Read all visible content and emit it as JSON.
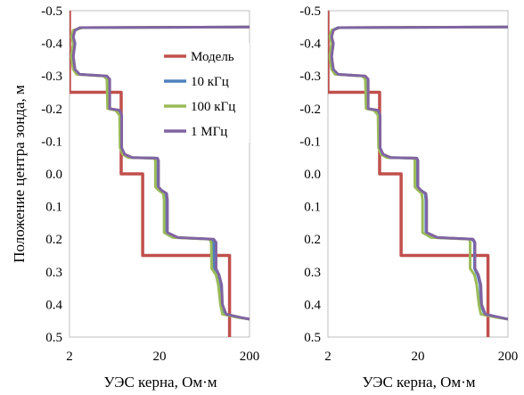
{
  "figure": {
    "ylabel": "Положение центра зонда, м",
    "xlabel": "УЭС керна,  Ом·м"
  },
  "chart_data": [
    {
      "type": "line",
      "xscale": "log",
      "xlim": [
        2,
        200
      ],
      "ylim": [
        -0.5,
        0.5
      ],
      "y_inverted": true,
      "x_ticks": [
        "2",
        "20",
        "200"
      ],
      "y_ticks": [
        "-0.5",
        "-0.4",
        "-0.3",
        "-0.2",
        "-0.1",
        "0.0",
        "0.1",
        "0.2",
        "0.3",
        "0.4",
        "0.5"
      ],
      "xlabel": "УЭС керна,  Ом·м",
      "ylabel": "Положение центра зонда, м",
      "grid": false,
      "legend": {
        "position": "top-right",
        "entries": [
          "Модель",
          "10 кГц",
          "100 кГц",
          "1 МГц"
        ]
      },
      "series": [
        {
          "name": "Модель",
          "color": "#c0504d",
          "points": [
            [
              2,
              -0.5
            ],
            [
              2,
              -0.25
            ],
            [
              7.5,
              -0.25
            ],
            [
              7.5,
              0.0
            ],
            [
              13,
              0.0
            ],
            [
              13,
              0.25
            ],
            [
              120,
              0.25
            ],
            [
              120,
              0.5
            ]
          ]
        },
        {
          "name": "10 кГц",
          "color": "#4f81bd",
          "points": [
            [
              200,
              -0.45
            ],
            [
              2.7,
              -0.448
            ],
            [
              2.3,
              -0.44
            ],
            [
              2.2,
              -0.42
            ],
            [
              2.3,
              -0.4
            ],
            [
              2.2,
              -0.36
            ],
            [
              2.3,
              -0.32
            ],
            [
              2.5,
              -0.305
            ],
            [
              5.0,
              -0.3
            ],
            [
              5.5,
              -0.29
            ],
            [
              5.5,
              -0.2
            ],
            [
              7.0,
              -0.195
            ],
            [
              7.5,
              -0.18
            ],
            [
              7.5,
              -0.08
            ],
            [
              8.0,
              -0.06
            ],
            [
              9.5,
              -0.05
            ],
            [
              18.0,
              -0.048
            ],
            [
              18.5,
              -0.04
            ],
            [
              18.5,
              0.04
            ],
            [
              20.0,
              0.05
            ],
            [
              23.0,
              0.06
            ],
            [
              23.5,
              0.08
            ],
            [
              23.5,
              0.18
            ],
            [
              30.0,
              0.195
            ],
            [
              75.0,
              0.2
            ],
            [
              80.0,
              0.21
            ],
            [
              80.0,
              0.29
            ],
            [
              90.0,
              0.31
            ],
            [
              95.0,
              0.34
            ],
            [
              98.0,
              0.4
            ],
            [
              105.0,
              0.43
            ],
            [
              150.0,
              0.44
            ],
            [
              200,
              0.445
            ]
          ]
        },
        {
          "name": "100 кГц",
          "color": "#9bbb59",
          "points": [
            [
              200,
              -0.45
            ],
            [
              2.8,
              -0.448
            ],
            [
              2.2,
              -0.44
            ],
            [
              2.1,
              -0.42
            ],
            [
              2.2,
              -0.4
            ],
            [
              2.1,
              -0.36
            ],
            [
              2.2,
              -0.32
            ],
            [
              2.4,
              -0.305
            ],
            [
              4.8,
              -0.3
            ],
            [
              5.2,
              -0.29
            ],
            [
              5.3,
              -0.2
            ],
            [
              6.5,
              -0.195
            ],
            [
              7.2,
              -0.18
            ],
            [
              7.3,
              -0.08
            ],
            [
              7.8,
              -0.06
            ],
            [
              9.0,
              -0.05
            ],
            [
              17.5,
              -0.048
            ],
            [
              18.0,
              -0.04
            ],
            [
              18.0,
              0.04
            ],
            [
              19.5,
              0.05
            ],
            [
              22.0,
              0.06
            ],
            [
              22.5,
              0.08
            ],
            [
              22.5,
              0.18
            ],
            [
              28.0,
              0.195
            ],
            [
              72.0,
              0.2
            ],
            [
              75.0,
              0.21
            ],
            [
              76.0,
              0.29
            ],
            [
              85.0,
              0.31
            ],
            [
              90.0,
              0.34
            ],
            [
              95.0,
              0.4
            ],
            [
              100.0,
              0.43
            ],
            [
              150.0,
              0.44
            ],
            [
              200,
              0.445
            ]
          ]
        },
        {
          "name": "1 МГц",
          "color": "#8064a2",
          "points": [
            [
              200,
              -0.45
            ],
            [
              2.6,
              -0.448
            ],
            [
              2.3,
              -0.44
            ],
            [
              2.2,
              -0.42
            ],
            [
              2.3,
              -0.4
            ],
            [
              2.2,
              -0.36
            ],
            [
              2.3,
              -0.32
            ],
            [
              2.6,
              -0.305
            ],
            [
              5.2,
              -0.3
            ],
            [
              5.6,
              -0.29
            ],
            [
              5.6,
              -0.2
            ],
            [
              7.2,
              -0.195
            ],
            [
              7.6,
              -0.18
            ],
            [
              7.6,
              -0.08
            ],
            [
              8.2,
              -0.06
            ],
            [
              10.0,
              -0.05
            ],
            [
              19.0,
              -0.048
            ],
            [
              19.5,
              -0.04
            ],
            [
              19.5,
              0.04
            ],
            [
              21.0,
              0.05
            ],
            [
              24.0,
              0.06
            ],
            [
              24.5,
              0.08
            ],
            [
              24.5,
              0.18
            ],
            [
              32.0,
              0.195
            ],
            [
              80.0,
              0.2
            ],
            [
              85.0,
              0.21
            ],
            [
              85.0,
              0.29
            ],
            [
              92.0,
              0.31
            ],
            [
              98.0,
              0.34
            ],
            [
              100.0,
              0.4
            ],
            [
              110.0,
              0.43
            ],
            [
              160.0,
              0.44
            ],
            [
              200,
              0.445
            ]
          ]
        }
      ]
    },
    {
      "type": "line",
      "xscale": "log",
      "xlim": [
        2,
        200
      ],
      "ylim": [
        -0.5,
        0.5
      ],
      "y_inverted": true,
      "x_ticks": [
        "2",
        "20",
        "200"
      ],
      "y_ticks": [
        "-0.5",
        "-0.4",
        "-0.3",
        "-0.2",
        "-0.1",
        "0.0",
        "0.1",
        "0.2",
        "0.3",
        "0.4",
        "0.5"
      ],
      "xlabel": "УЭС керна,  Ом·м",
      "ylabel": "",
      "grid": false,
      "series": [
        {
          "name": "Модель",
          "color": "#c0504d",
          "points": [
            [
              2,
              -0.5
            ],
            [
              2,
              -0.25
            ],
            [
              7.5,
              -0.25
            ],
            [
              7.5,
              0.0
            ],
            [
              13,
              0.0
            ],
            [
              13,
              0.25
            ],
            [
              120,
              0.25
            ],
            [
              120,
              0.5
            ]
          ]
        },
        {
          "name": "10 кГц",
          "color": "#4f81bd",
          "points": [
            [
              200,
              -0.45
            ],
            [
              2.6,
              -0.448
            ],
            [
              2.2,
              -0.44
            ],
            [
              2.1,
              -0.42
            ],
            [
              2.2,
              -0.4
            ],
            [
              2.1,
              -0.36
            ],
            [
              2.2,
              -0.32
            ],
            [
              2.5,
              -0.305
            ],
            [
              5.0,
              -0.3
            ],
            [
              5.5,
              -0.29
            ],
            [
              5.5,
              -0.2
            ],
            [
              7.0,
              -0.195
            ],
            [
              7.5,
              -0.18
            ],
            [
              7.5,
              -0.08
            ],
            [
              8.0,
              -0.06
            ],
            [
              9.5,
              -0.05
            ],
            [
              19.0,
              -0.048
            ],
            [
              19.5,
              -0.04
            ],
            [
              19.5,
              0.04
            ],
            [
              21.0,
              0.05
            ],
            [
              24.0,
              0.06
            ],
            [
              24.5,
              0.08
            ],
            [
              24.5,
              0.18
            ],
            [
              32.0,
              0.195
            ],
            [
              80.0,
              0.2
            ],
            [
              85.0,
              0.21
            ],
            [
              85.0,
              0.29
            ],
            [
              92.0,
              0.31
            ],
            [
              98.0,
              0.34
            ],
            [
              100.0,
              0.4
            ],
            [
              110.0,
              0.43
            ],
            [
              160.0,
              0.44
            ],
            [
              200,
              0.445
            ]
          ]
        },
        {
          "name": "100 кГц",
          "color": "#9bbb59",
          "points": [
            [
              200,
              -0.45
            ],
            [
              2.7,
              -0.448
            ],
            [
              2.2,
              -0.44
            ],
            [
              2.1,
              -0.42
            ],
            [
              2.2,
              -0.4
            ],
            [
              2.1,
              -0.36
            ],
            [
              2.2,
              -0.32
            ],
            [
              2.4,
              -0.305
            ],
            [
              4.8,
              -0.3
            ],
            [
              5.2,
              -0.29
            ],
            [
              5.3,
              -0.2
            ],
            [
              6.5,
              -0.195
            ],
            [
              7.2,
              -0.18
            ],
            [
              7.3,
              -0.08
            ],
            [
              7.8,
              -0.06
            ],
            [
              9.0,
              -0.05
            ],
            [
              18.0,
              -0.048
            ],
            [
              18.5,
              -0.04
            ],
            [
              18.5,
              0.04
            ],
            [
              20.0,
              0.05
            ],
            [
              22.0,
              0.06
            ],
            [
              22.5,
              0.08
            ],
            [
              22.5,
              0.18
            ],
            [
              28.0,
              0.195
            ],
            [
              75.0,
              0.2
            ],
            [
              76.0,
              0.21
            ],
            [
              76.0,
              0.29
            ],
            [
              85.0,
              0.31
            ],
            [
              90.0,
              0.34
            ],
            [
              95.0,
              0.4
            ],
            [
              100.0,
              0.43
            ],
            [
              150.0,
              0.44
            ],
            [
              200,
              0.445
            ]
          ]
        },
        {
          "name": "1 МГц",
          "color": "#8064a2",
          "points": [
            [
              200,
              -0.45
            ],
            [
              2.6,
              -0.448
            ],
            [
              2.3,
              -0.44
            ],
            [
              2.2,
              -0.42
            ],
            [
              2.3,
              -0.4
            ],
            [
              2.2,
              -0.36
            ],
            [
              2.3,
              -0.32
            ],
            [
              2.6,
              -0.305
            ],
            [
              5.2,
              -0.3
            ],
            [
              5.6,
              -0.29
            ],
            [
              5.6,
              -0.2
            ],
            [
              7.2,
              -0.195
            ],
            [
              7.6,
              -0.18
            ],
            [
              7.6,
              -0.08
            ],
            [
              8.2,
              -0.06
            ],
            [
              10.0,
              -0.05
            ],
            [
              19.5,
              -0.048
            ],
            [
              20.0,
              -0.04
            ],
            [
              20.0,
              0.04
            ],
            [
              21.5,
              0.05
            ],
            [
              24.5,
              0.06
            ],
            [
              25.0,
              0.08
            ],
            [
              25.0,
              0.18
            ],
            [
              33.0,
              0.195
            ],
            [
              82.0,
              0.2
            ],
            [
              86.0,
              0.21
            ],
            [
              86.0,
              0.29
            ],
            [
              94.0,
              0.31
            ],
            [
              100.0,
              0.34
            ],
            [
              102.0,
              0.4
            ],
            [
              112.0,
              0.43
            ],
            [
              165.0,
              0.44
            ],
            [
              200,
              0.445
            ]
          ]
        }
      ]
    }
  ]
}
